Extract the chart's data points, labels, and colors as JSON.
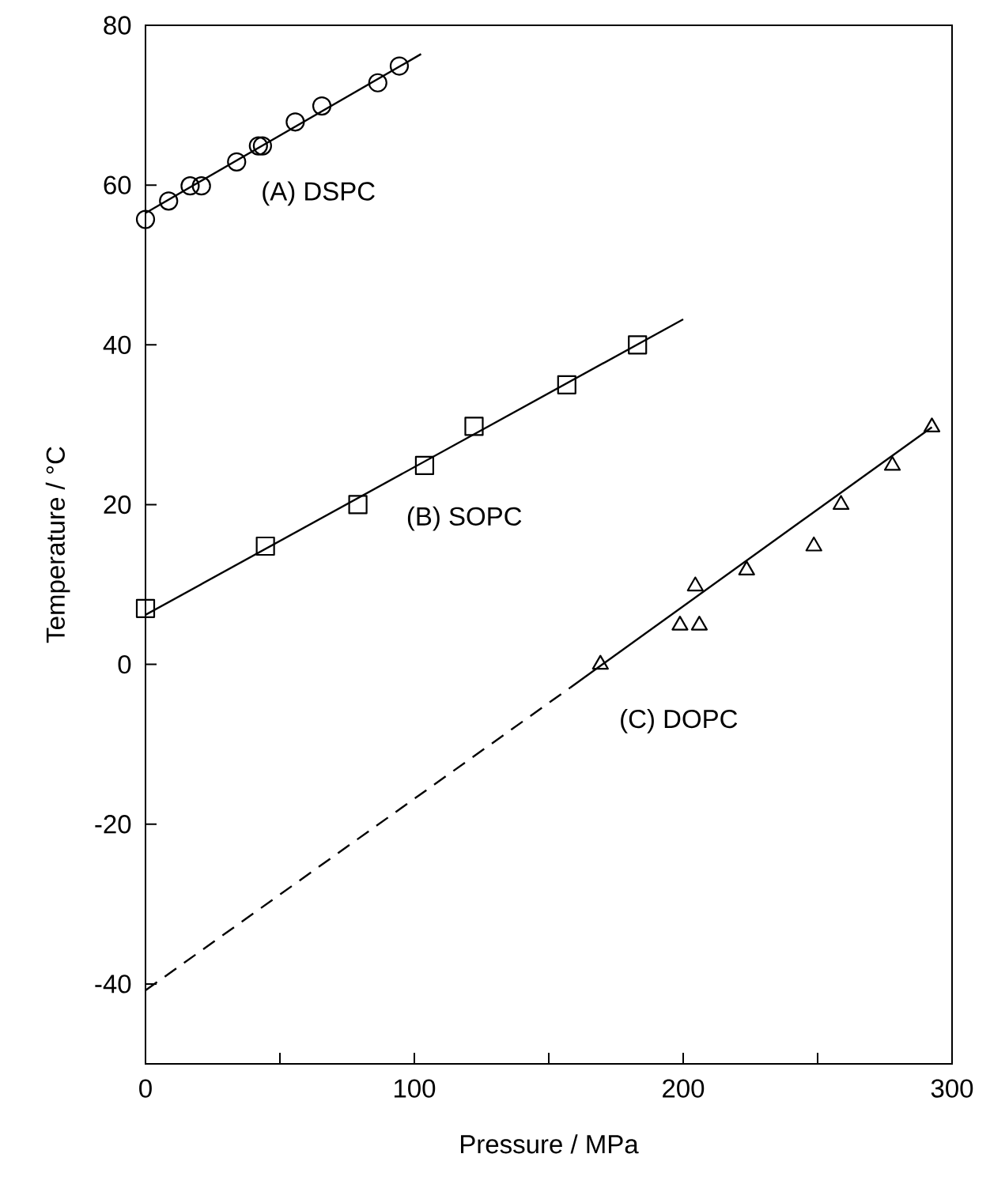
{
  "chart_data": {
    "type": "scatter",
    "xlabel": "Pressure  /  MPa",
    "ylabel": "Temperature / °C",
    "xlim": [
      0,
      300
    ],
    "ylim": [
      -50,
      80
    ],
    "xticks": [
      0,
      {
        "value": 50,
        "label": null
      },
      100,
      {
        "value": 150,
        "label": null
      },
      200,
      {
        "value": 250,
        "label": null
      },
      300
    ],
    "yticks": [
      -40,
      -20,
      0,
      20,
      40,
      60,
      80
    ],
    "series": [
      {
        "marker": "circle",
        "color": "#000000",
        "x": [
          0,
          8.6,
          16.6,
          20.8,
          33.9,
          42,
          43.5,
          55.7,
          65.6,
          86.4,
          94.4
        ],
        "values": [
          55.7,
          58,
          59.9,
          59.9,
          62.9,
          64.9,
          64.9,
          67.9,
          69.9,
          72.8,
          74.9
        ]
      },
      {
        "type": "line",
        "marker": "none",
        "line_style": "solid",
        "color": "#000000",
        "x": [
          0,
          102.5
        ],
        "values": [
          56.5,
          76.4
        ]
      },
      {
        "marker": "square",
        "color": "#000000",
        "x": [
          0,
          44.6,
          79,
          103.8,
          122.2,
          156.7,
          183
        ],
        "values": [
          7,
          14.8,
          20,
          24.9,
          29.8,
          35,
          40
        ]
      },
      {
        "type": "line",
        "marker": "none",
        "line_style": "solid",
        "color": "#000000",
        "x": [
          0,
          200
        ],
        "values": [
          6.2,
          43.2
        ]
      },
      {
        "marker": "triangle",
        "color": "#000000",
        "x": [
          169.2,
          198.8,
          206,
          204.5,
          223.6,
          248.6,
          258.7,
          277.8,
          292.5
        ],
        "values": [
          0,
          4.9,
          4.9,
          9.8,
          11.8,
          14.8,
          20,
          24.9,
          29.7
        ]
      },
      {
        "type": "line",
        "marker": "none",
        "line_style": "solid",
        "color": "#000000",
        "x": [
          158,
          292.5
        ],
        "values": [
          -2.9,
          29.7
        ]
      },
      {
        "type": "line",
        "marker": "none",
        "line_style": "dashed",
        "color": "#000000",
        "x": [
          0,
          158
        ],
        "values": [
          -40.8,
          -2.9
        ]
      }
    ],
    "annotations": [
      "(A) DSPC",
      "(B) SOPC",
      "(C) DOPC"
    ]
  }
}
